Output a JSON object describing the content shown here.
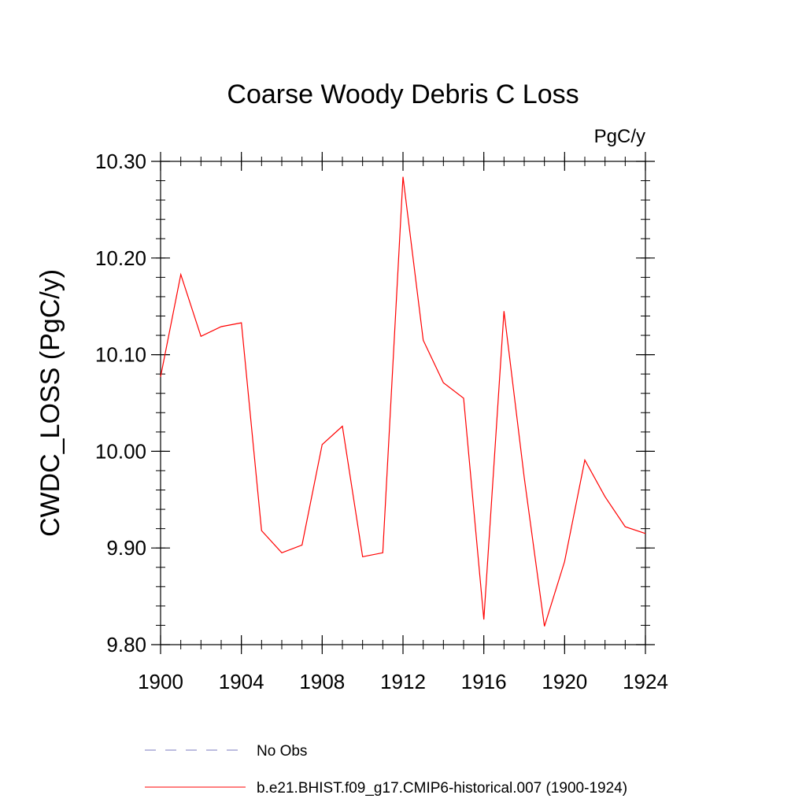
{
  "chart_data": {
    "type": "line",
    "title": "Coarse Woody Debris C Loss",
    "units_label": "PgC/y",
    "xlabel": "",
    "ylabel": "CWDC_LOSS  (PgC/y)",
    "xlim": [
      1900,
      1924
    ],
    "ylim": [
      9.8,
      10.3
    ],
    "x_ticks": [
      1900,
      1904,
      1908,
      1912,
      1916,
      1920,
      1924
    ],
    "x_tick_labels": [
      "1900",
      "1904",
      "1908",
      "1912",
      "1916",
      "1920",
      "1924"
    ],
    "y_ticks": [
      9.8,
      9.9,
      10.0,
      10.1,
      10.2,
      10.3
    ],
    "y_tick_labels": [
      "9.80",
      "9.90",
      "10.00",
      "10.10",
      "10.20",
      "10.30"
    ],
    "grid": false,
    "legend_position": "bottom",
    "series": [
      {
        "name": "b.e21.BHIST.f09_g17.CMIP6-historical.007 (1900-1924)",
        "color": "#ff0000",
        "style": "solid",
        "x": [
          1900,
          1901,
          1902,
          1903,
          1904,
          1905,
          1906,
          1907,
          1908,
          1909,
          1910,
          1911,
          1912,
          1913,
          1914,
          1915,
          1916,
          1917,
          1918,
          1919,
          1920,
          1921,
          1922,
          1923,
          1924
        ],
        "values": [
          10.077,
          10.183,
          10.119,
          10.129,
          10.133,
          9.918,
          9.895,
          9.903,
          10.007,
          10.026,
          9.891,
          9.895,
          10.284,
          10.115,
          10.071,
          10.055,
          9.826,
          10.145,
          9.973,
          9.819,
          9.886,
          9.991,
          9.953,
          9.922,
          9.915
        ]
      }
    ],
    "legend": [
      {
        "label": "No Obs",
        "color": "#7a7abf",
        "style": "dashed"
      },
      {
        "label": "b.e21.BHIST.f09_g17.CMIP6-historical.007 (1900-1924)",
        "color": "#ff0000",
        "style": "solid"
      }
    ]
  }
}
